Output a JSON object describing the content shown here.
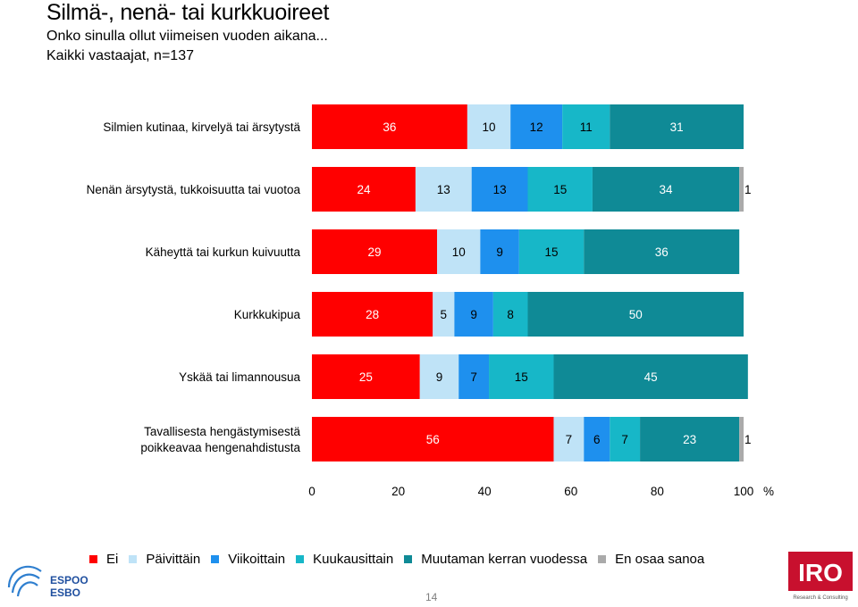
{
  "header": {
    "title": "Silmä-, nenä- tai kurkkuoireet",
    "subtitle": "Onko sinulla ollut viimeisen vuoden aikana...",
    "sample": "Kaikki vastaajat, n=137"
  },
  "chart_data": {
    "type": "bar",
    "orientation": "horizontal",
    "stacked": true,
    "categories": [
      [
        "Silmien kutinaa, kirvelyä tai ärsytystä"
      ],
      [
        "Nenän ärsytystä, tukkoisuutta tai vuotoa"
      ],
      [
        "Käheyttä tai kurkun kuivuutta"
      ],
      [
        "Kurkkukipua"
      ],
      [
        "Yskää tai limannousua"
      ],
      [
        "Tavallisesta hengästymisestä",
        "poikkeavaa hengenahdistusta"
      ]
    ],
    "series": [
      {
        "name": "Ei",
        "color": "#ff0000",
        "values": [
          36,
          24,
          29,
          28,
          25,
          56
        ]
      },
      {
        "name": "Päivittäin",
        "color": "#bfe3f7",
        "values": [
          10,
          13,
          10,
          5,
          9,
          7
        ]
      },
      {
        "name": "Viikoittain",
        "color": "#1e90ee",
        "values": [
          12,
          13,
          9,
          9,
          7,
          6
        ]
      },
      {
        "name": "Kuukausittain",
        "color": "#17b7c8",
        "values": [
          11,
          15,
          15,
          8,
          15,
          7
        ]
      },
      {
        "name": "Muutaman kerran vuodessa",
        "color": "#0f8a96",
        "values": [
          31,
          34,
          36,
          50,
          45,
          23
        ]
      },
      {
        "name": "En osaa sanoa",
        "color": "#aaaaaa",
        "values": [
          0,
          1,
          0,
          0,
          0,
          1
        ]
      }
    ],
    "xlim": [
      0,
      100
    ],
    "xticks": [
      "0",
      "20",
      "40",
      "60",
      "80",
      "100"
    ],
    "xunit": "%",
    "legend_position": "bottom"
  },
  "footer": {
    "espoo_line1": "ESPOO",
    "espoo_line2": "ESBO",
    "iro_logo": "IRO",
    "iro_tagline": "Research & Consulting",
    "page_number": "14"
  }
}
